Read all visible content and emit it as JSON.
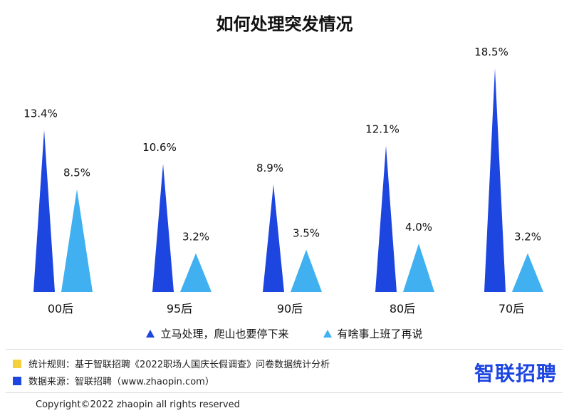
{
  "colors": {
    "series1": "#1d45e0",
    "series2": "#40b0f0",
    "yellow": "#f4d03f",
    "blue_square": "#1d45e0",
    "logo": "#1d45e0"
  },
  "chart_data": {
    "type": "bar",
    "title": "如何处理突发情况",
    "categories": [
      "00后",
      "95后",
      "90后",
      "80后",
      "70后"
    ],
    "series": [
      {
        "name": "立马处理，爬山也要停下来",
        "values": [
          13.4,
          10.6,
          8.9,
          12.1,
          18.5
        ]
      },
      {
        "name": "有啥事上班了再说",
        "values": [
          8.5,
          3.2,
          3.5,
          4.0,
          3.2
        ]
      }
    ],
    "data_labels": [
      [
        "13.4%",
        "10.6%",
        "8.9%",
        "12.1%",
        "18.5%"
      ],
      [
        "8.5%",
        "3.2%",
        "3.5%",
        "4.0%",
        "3.2%"
      ]
    ],
    "legend_position": "bottom",
    "grid": false,
    "mark_shape": "triangle"
  },
  "footer": {
    "rule_text": "统计规则：基于智联招聘《2022职场人国庆长假调查》问卷数据统计分析",
    "source_text": "数据来源：智联招聘（www.zhaopin.com）",
    "logo_text": "智联招聘",
    "copyright": "Copyright©2022 zhaopin all rights reserved"
  }
}
